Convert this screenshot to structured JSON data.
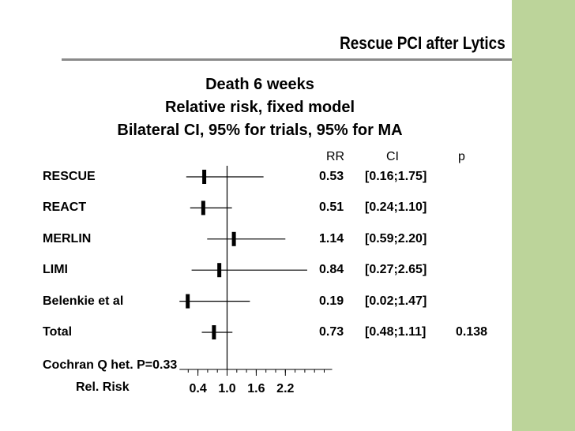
{
  "slide": {
    "title": "Rescue PCI after Lytics",
    "accent_color": "#bcd49a"
  },
  "chart_data": {
    "type": "forest",
    "title_lines": [
      "Death 6 weeks",
      "Relative risk, fixed model",
      "Bilateral CI, 95% for trials, 95% for MA"
    ],
    "column_headers": {
      "rr": "RR",
      "ci": "CI",
      "p": "p"
    },
    "rows": [
      {
        "label": "RESCUE",
        "rr": 0.53,
        "rr_text": "0.53",
        "ci_low": 0.16,
        "ci_high": 1.75,
        "ci_text": "[0.16;1.75]",
        "p_text": ""
      },
      {
        "label": "REACT",
        "rr": 0.51,
        "rr_text": "0.51",
        "ci_low": 0.24,
        "ci_high": 1.1,
        "ci_text": "[0.24;1.10]",
        "p_text": ""
      },
      {
        "label": "MERLIN",
        "rr": 1.14,
        "rr_text": "1.14",
        "ci_low": 0.59,
        "ci_high": 2.2,
        "ci_text": "[0.59;2.20]",
        "p_text": ""
      },
      {
        "label": "LIMI",
        "rr": 0.84,
        "rr_text": "0.84",
        "ci_low": 0.27,
        "ci_high": 2.65,
        "ci_text": "[0.27;2.65]",
        "p_text": ""
      },
      {
        "label": "Belenkie et al",
        "rr": 0.19,
        "rr_text": "0.19",
        "ci_low": 0.02,
        "ci_high": 1.47,
        "ci_text": "[0.02;1.47]",
        "p_text": ""
      },
      {
        "label": "Total",
        "rr": 0.73,
        "rr_text": "0.73",
        "ci_low": 0.48,
        "ci_high": 1.11,
        "ci_text": "[0.48;1.11]",
        "p_text": "0.138"
      }
    ],
    "heterogeneity_label": "Cochran Q het. P=0.33",
    "x_axis": {
      "label": "Rel. Risk",
      "ticks": [
        0.4,
        1.0,
        1.6,
        2.2
      ],
      "tick_labels": [
        "0.4",
        "1.0",
        "1.6",
        "2.2"
      ],
      "reference_line": 1.0,
      "range": [
        0,
        3.0
      ]
    }
  }
}
